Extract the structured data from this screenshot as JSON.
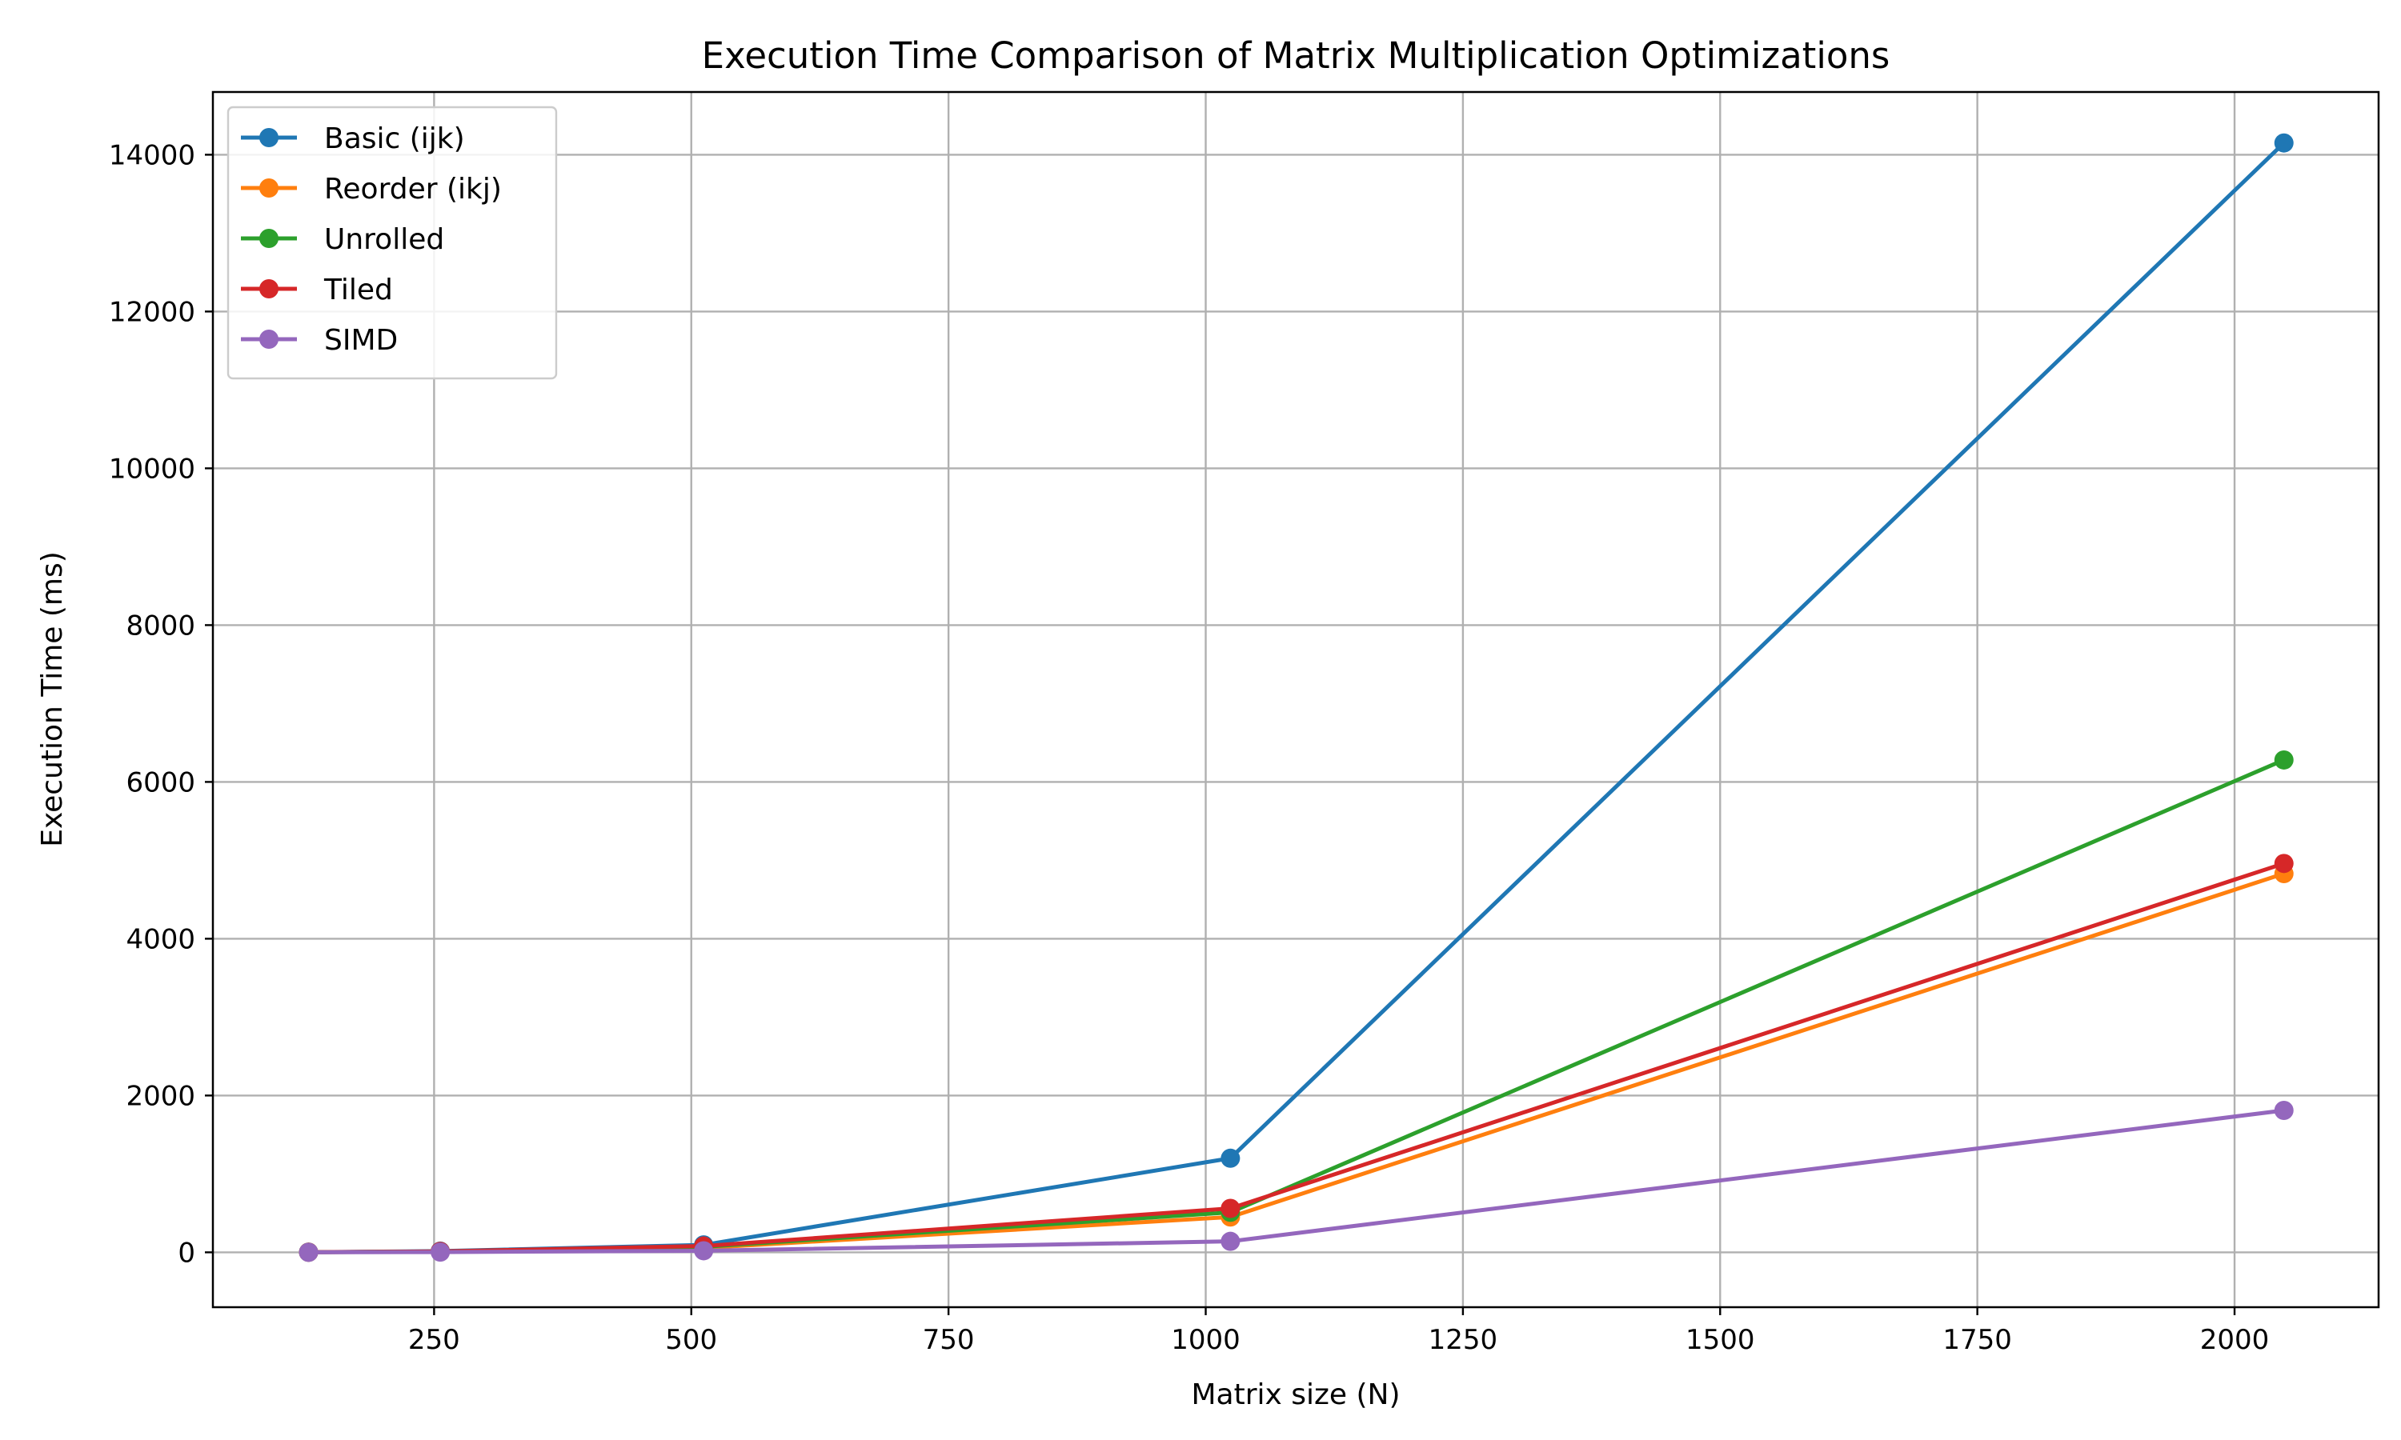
{
  "chart_data": {
    "type": "line",
    "title": "Execution Time Comparison of Matrix Multiplication Optimizations",
    "xlabel": "Matrix size (N)",
    "ylabel": "Execution Time (ms)",
    "x": [
      128,
      256,
      512,
      1024,
      2048
    ],
    "xlim": [
      35,
      2140
    ],
    "ylim": [
      -700,
      14800
    ],
    "xticks": [
      250,
      500,
      750,
      1000,
      1250,
      1500,
      1750,
      2000
    ],
    "yticks": [
      0,
      2000,
      4000,
      6000,
      8000,
      10000,
      12000,
      14000
    ],
    "grid": true,
    "legend_position": "top-left",
    "series": [
      {
        "name": "Basic (ijk)",
        "color": "#1f77b4",
        "values": [
          2,
          15,
          95,
          1200,
          14150
        ]
      },
      {
        "name": "Reorder (ikj)",
        "color": "#ff7f0e",
        "values": [
          1,
          8,
          55,
          450,
          4830
        ]
      },
      {
        "name": "Unrolled",
        "color": "#2ca02c",
        "values": [
          1,
          10,
          70,
          510,
          6280
        ]
      },
      {
        "name": "Tiled",
        "color": "#d62728",
        "values": [
          1,
          12,
          80,
          560,
          4960
        ]
      },
      {
        "name": "SIMD",
        "color": "#9467bd",
        "values": [
          0,
          3,
          20,
          140,
          1810
        ]
      }
    ]
  }
}
